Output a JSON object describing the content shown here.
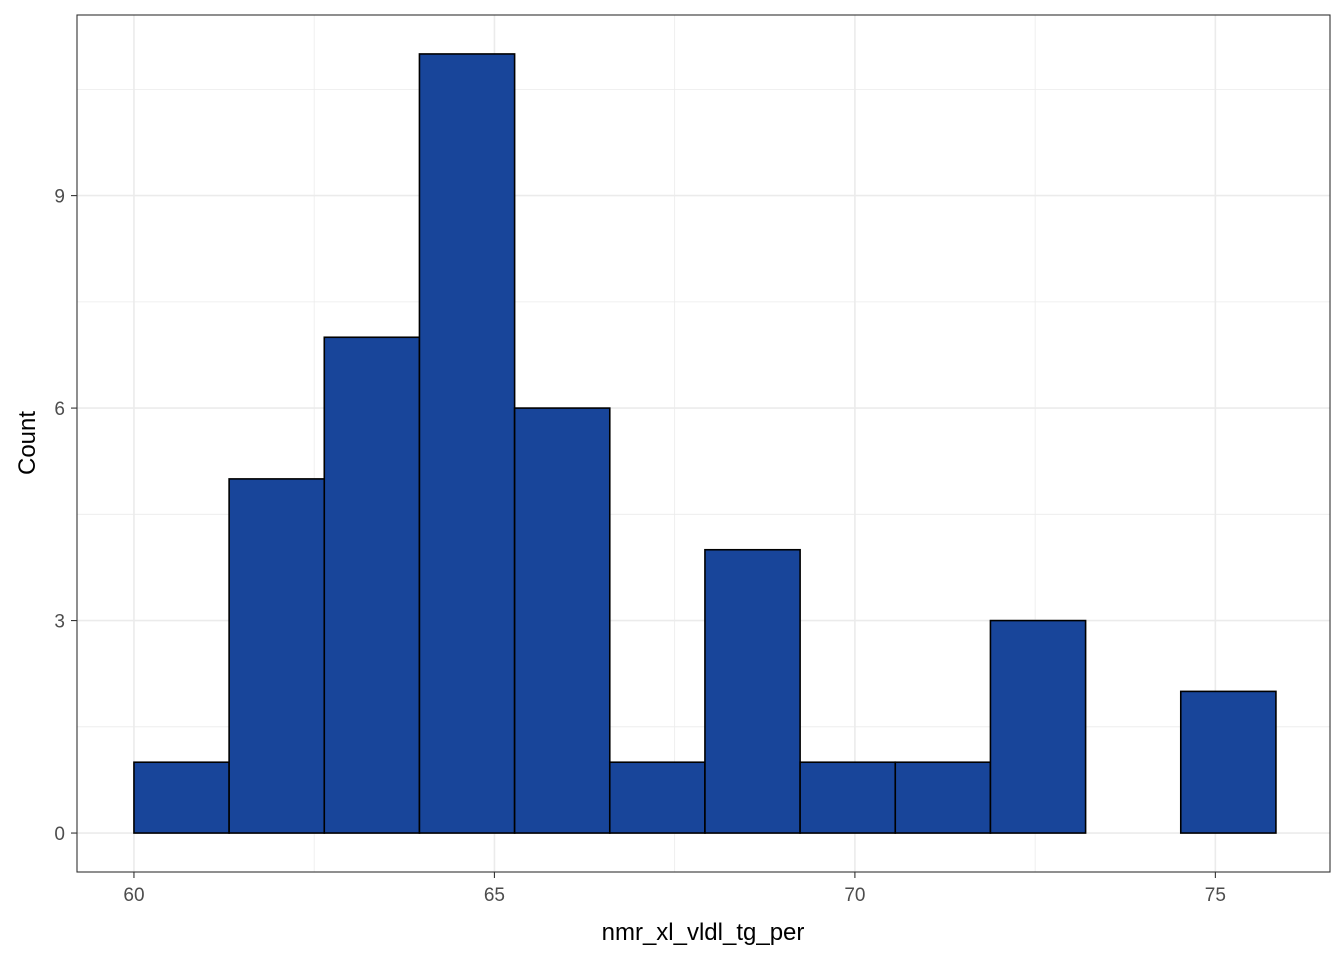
{
  "chart_data": {
    "type": "bar",
    "subtype": "histogram",
    "xlabel": "nmr_xl_vldl_tg_per",
    "ylabel": "Count",
    "xlim": [
      59.21,
      76.59
    ],
    "ylim": [
      -0.55,
      11.55
    ],
    "x_ticks": [
      60,
      65,
      70,
      75
    ],
    "y_ticks": [
      0,
      3,
      6,
      9
    ],
    "grid": true,
    "bin_edges": [
      60.0,
      61.32,
      62.64,
      63.96,
      65.28,
      66.6,
      67.92,
      69.24,
      70.56,
      71.88,
      73.2,
      74.52,
      75.84
    ],
    "values": [
      1,
      5,
      7,
      11,
      6,
      1,
      4,
      1,
      1,
      3,
      0,
      2
    ],
    "fill_color": "#18459A",
    "outline_color": "#000000",
    "grid_color": "#EBEBEB",
    "panel_border_color": "#333333"
  }
}
